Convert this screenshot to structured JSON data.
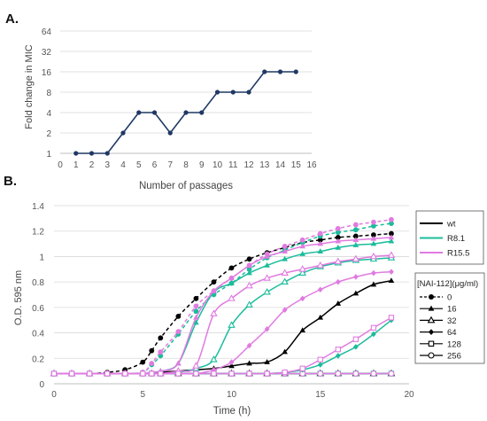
{
  "chart_data": [
    {
      "panel_label": "A.",
      "type": "line",
      "xlabel": "Number of passages",
      "ylabel": "Fold change in MIC",
      "x_ticks": [
        "0",
        "1",
        "2",
        "3",
        "4",
        "5",
        "6",
        "7",
        "8",
        "9",
        "10",
        "11",
        "12",
        "13",
        "14",
        "15",
        "16"
      ],
      "y_scale": "log2",
      "y_ticks": [
        "1",
        "2",
        "4",
        "8",
        "16",
        "32",
        "64"
      ],
      "xlim": [
        0,
        16
      ],
      "ylim": [
        1,
        64
      ],
      "grid": "horizontal",
      "series": [
        {
          "color": "#1f3864",
          "x": [
            1,
            2,
            3,
            4,
            5,
            6,
            7,
            8,
            9,
            10,
            11,
            12,
            13,
            14,
            15
          ],
          "y": [
            1,
            1,
            1,
            2,
            4,
            4,
            2,
            4,
            4,
            8,
            8,
            8,
            16,
            16,
            16
          ]
        }
      ]
    },
    {
      "panel_label": "B.",
      "type": "line",
      "xlabel": "Time (h)",
      "ylabel": "O.D. 595 nm",
      "x_ticks": [
        "0",
        "5",
        "10",
        "15",
        "20"
      ],
      "y_ticks": [
        "0",
        "0.2",
        "0.4",
        "0.6",
        "0.8",
        "1",
        "1.2",
        "1.4"
      ],
      "xlim": [
        0,
        20
      ],
      "ylim": [
        0,
        1.4
      ],
      "grid": "horizontal",
      "legend_strains_placement": "right",
      "legend_strains": [
        {
          "label": "wt",
          "color": "#000000"
        },
        {
          "label": "R8.1",
          "color": "#1bbc9b"
        },
        {
          "label": "R15.5",
          "color": "#e07be0"
        }
      ],
      "legend_conc_title": "[NAI-112](μg/ml)",
      "legend_conc": [
        {
          "label": "0",
          "marker": "filled-circle",
          "line": "dashed"
        },
        {
          "label": "16",
          "marker": "filled-triangle",
          "line": "solid"
        },
        {
          "label": "32",
          "marker": "open-triangle",
          "line": "solid"
        },
        {
          "label": "64",
          "marker": "filled-diamond",
          "line": "solid"
        },
        {
          "label": "128",
          "marker": "open-square",
          "line": "solid"
        },
        {
          "label": "256",
          "marker": "open-circle",
          "line": "solid"
        }
      ],
      "x": [
        0,
        1,
        2,
        3,
        4,
        5,
        5.5,
        6,
        7,
        8,
        9,
        10,
        11,
        12,
        13,
        14,
        15,
        16,
        17,
        18,
        19
      ],
      "series": [
        {
          "strain": "wt",
          "conc": "0",
          "color": "#000000",
          "marker": "filled-circle",
          "dash": true,
          "y": [
            0.08,
            0.08,
            0.08,
            0.09,
            0.11,
            0.17,
            0.26,
            0.36,
            0.53,
            0.67,
            0.8,
            0.91,
            0.98,
            1.03,
            1.07,
            1.11,
            1.13,
            1.15,
            1.16,
            1.17,
            1.18
          ]
        },
        {
          "strain": "wt",
          "conc": "16",
          "color": "#000000",
          "marker": "filled-triangle",
          "dash": false,
          "y": [
            0.08,
            0.08,
            0.08,
            0.08,
            0.08,
            0.08,
            0.08,
            0.09,
            0.1,
            0.11,
            0.12,
            0.14,
            0.16,
            0.17,
            0.25,
            0.42,
            0.52,
            0.63,
            0.71,
            0.78,
            0.81
          ]
        },
        {
          "strain": "wt",
          "conc": "32",
          "color": "#000000",
          "marker": "open-triangle",
          "dash": false,
          "y": [
            0.08,
            0.08,
            0.08,
            0.08,
            0.08,
            0.08,
            0.08,
            0.08,
            0.08,
            0.08,
            0.08,
            0.08,
            0.08,
            0.08,
            0.08,
            0.08,
            0.08,
            0.08,
            0.08,
            0.08,
            0.08
          ]
        },
        {
          "strain": "R8.1",
          "conc": "0",
          "color": "#1bbc9b",
          "marker": "filled-circle",
          "dash": true,
          "y": [
            0.08,
            0.08,
            0.08,
            0.08,
            0.08,
            0.09,
            0.15,
            0.22,
            0.39,
            0.57,
            0.7,
            0.79,
            0.9,
            0.99,
            1.05,
            1.11,
            1.16,
            1.19,
            1.21,
            1.24,
            1.26
          ]
        },
        {
          "strain": "R8.1",
          "conc": "16",
          "color": "#1bbc9b",
          "marker": "filled-triangle",
          "dash": false,
          "y": [
            0.08,
            0.08,
            0.08,
            0.08,
            0.08,
            0.08,
            0.09,
            0.1,
            0.16,
            0.48,
            0.72,
            0.79,
            0.87,
            0.93,
            0.98,
            1.02,
            1.04,
            1.07,
            1.09,
            1.1,
            1.12
          ]
        },
        {
          "strain": "R8.1",
          "conc": "32",
          "color": "#1bbc9b",
          "marker": "open-triangle",
          "dash": false,
          "y": [
            0.08,
            0.08,
            0.08,
            0.08,
            0.08,
            0.08,
            0.08,
            0.08,
            0.09,
            0.12,
            0.19,
            0.46,
            0.62,
            0.72,
            0.8,
            0.87,
            0.92,
            0.95,
            0.97,
            0.98,
            0.99
          ]
        },
        {
          "strain": "R8.1",
          "conc": "64",
          "color": "#1bbc9b",
          "marker": "filled-diamond",
          "dash": false,
          "y": [
            0.08,
            0.08,
            0.08,
            0.08,
            0.08,
            0.08,
            0.08,
            0.08,
            0.08,
            0.08,
            0.08,
            0.08,
            0.08,
            0.08,
            0.09,
            0.11,
            0.15,
            0.22,
            0.29,
            0.39,
            0.5
          ]
        },
        {
          "strain": "R8.1",
          "conc": "128",
          "color": "#1bbc9b",
          "marker": "open-square",
          "dash": false,
          "y": [
            0.08,
            0.08,
            0.08,
            0.08,
            0.08,
            0.08,
            0.08,
            0.08,
            0.08,
            0.08,
            0.08,
            0.08,
            0.08,
            0.08,
            0.08,
            0.08,
            0.08,
            0.08,
            0.08,
            0.08,
            0.08
          ]
        },
        {
          "strain": "R15.5",
          "conc": "0",
          "color": "#e07be0",
          "marker": "filled-circle",
          "dash": true,
          "y": [
            0.08,
            0.08,
            0.08,
            0.08,
            0.08,
            0.09,
            0.16,
            0.25,
            0.41,
            0.61,
            0.73,
            0.83,
            0.93,
            1.02,
            1.08,
            1.13,
            1.18,
            1.22,
            1.25,
            1.27,
            1.29
          ]
        },
        {
          "strain": "R15.5",
          "conc": "16",
          "color": "#e07be0",
          "marker": "filled-triangle",
          "dash": false,
          "y": [
            0.08,
            0.08,
            0.08,
            0.08,
            0.08,
            0.08,
            0.09,
            0.1,
            0.16,
            0.52,
            0.73,
            0.83,
            0.93,
            1.0,
            1.04,
            1.08,
            1.1,
            1.12,
            1.13,
            1.14,
            1.15
          ]
        },
        {
          "strain": "R15.5",
          "conc": "32",
          "color": "#e07be0",
          "marker": "open-triangle",
          "dash": false,
          "y": [
            0.08,
            0.08,
            0.08,
            0.08,
            0.08,
            0.08,
            0.08,
            0.08,
            0.1,
            0.14,
            0.55,
            0.67,
            0.77,
            0.83,
            0.87,
            0.9,
            0.93,
            0.96,
            0.98,
            1.0,
            1.01
          ]
        },
        {
          "strain": "R15.5",
          "conc": "64",
          "color": "#e07be0",
          "marker": "filled-diamond",
          "dash": false,
          "y": [
            0.08,
            0.08,
            0.08,
            0.08,
            0.08,
            0.08,
            0.08,
            0.08,
            0.08,
            0.08,
            0.11,
            0.17,
            0.3,
            0.43,
            0.58,
            0.67,
            0.74,
            0.8,
            0.84,
            0.87,
            0.88
          ]
        },
        {
          "strain": "R15.5",
          "conc": "128",
          "color": "#e07be0",
          "marker": "open-square",
          "dash": false,
          "y": [
            0.08,
            0.08,
            0.08,
            0.08,
            0.08,
            0.08,
            0.08,
            0.08,
            0.08,
            0.08,
            0.08,
            0.08,
            0.08,
            0.08,
            0.09,
            0.12,
            0.19,
            0.27,
            0.35,
            0.44,
            0.52
          ]
        },
        {
          "strain": "R15.5",
          "conc": "256",
          "color": "#e07be0",
          "marker": "open-circle",
          "dash": false,
          "y": [
            0.08,
            0.08,
            0.08,
            0.08,
            0.08,
            0.08,
            0.08,
            0.08,
            0.08,
            0.08,
            0.08,
            0.08,
            0.08,
            0.08,
            0.08,
            0.08,
            0.08,
            0.08,
            0.08,
            0.08,
            0.08
          ]
        }
      ]
    }
  ]
}
